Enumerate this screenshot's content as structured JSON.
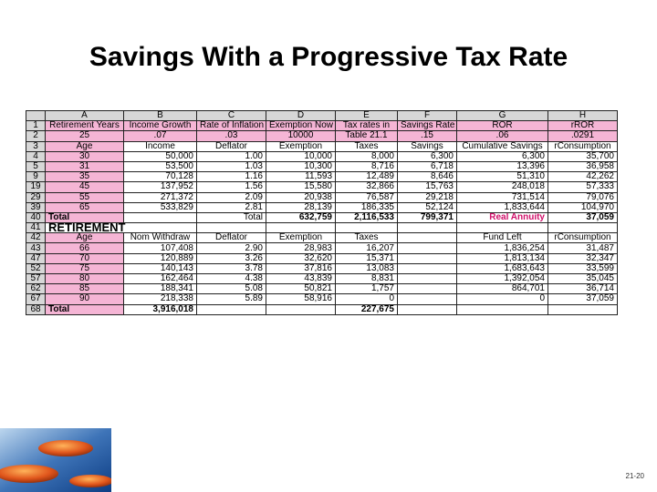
{
  "title": "Savings With a Progressive Tax Rate",
  "page_number": "21-20",
  "column_letters": [
    "A",
    "B",
    "C",
    "D",
    "E",
    "F",
    "G",
    "H"
  ],
  "row_numbers": [
    "1",
    "2",
    "3",
    "4",
    "5",
    "9",
    "19",
    "29",
    "39",
    "40",
    "41",
    "42",
    "43",
    "47",
    "52",
    "57",
    "62",
    "67",
    "68"
  ],
  "r1": [
    "Retirement Years",
    "Income Growth",
    "Rate of Inflation",
    "Exemption Now",
    "Tax rates in",
    "Savings Rate",
    "ROR",
    "rROR"
  ],
  "r2": [
    "25",
    ".07",
    ".03",
    "10000",
    "Table 21.1",
    ".15",
    ".06",
    ".0291"
  ],
  "r3": [
    "Age",
    "Income",
    "Deflator",
    "Exemption",
    "Taxes",
    "Savings",
    "Cumulative Savings",
    "rConsumption"
  ],
  "work": [
    [
      "30",
      "50,000",
      "1.00",
      "10,000",
      "8,000",
      "6,300",
      "6,300",
      "35,700"
    ],
    [
      "31",
      "53,500",
      "1.03",
      "10,300",
      "8,716",
      "6,718",
      "13,396",
      "36,958"
    ],
    [
      "35",
      "70,128",
      "1.16",
      "11,593",
      "12,489",
      "8,646",
      "51,310",
      "42,262"
    ],
    [
      "45",
      "137,952",
      "1.56",
      "15,580",
      "32,866",
      "15,763",
      "248,018",
      "57,333"
    ],
    [
      "55",
      "271,372",
      "2.09",
      "20,938",
      "76,587",
      "29,218",
      "731,514",
      "79,076"
    ],
    [
      "65",
      "533,829",
      "2.81",
      "28,139",
      "186,335",
      "52,124",
      "1,833,644",
      "104,970"
    ]
  ],
  "r40": {
    "a": "Total",
    "c": "Total",
    "d": "632,759",
    "e": "2,116,533",
    "f": "799,371",
    "g": "Real Annuity",
    "h": "37,059"
  },
  "r41": "RETIREMENT",
  "r42": {
    "a": "Age",
    "b": "Nom Withdraw",
    "c": "Deflator",
    "d": "Exemption",
    "e": "Taxes",
    "g": "Fund Left",
    "h": "rConsumption"
  },
  "ret": [
    [
      "66",
      "107,408",
      "2.90",
      "28,983",
      "16,207",
      "1,836,254",
      "31,487"
    ],
    [
      "70",
      "120,889",
      "3.26",
      "32,620",
      "15,371",
      "1,813,134",
      "32,347"
    ],
    [
      "75",
      "140,143",
      "3.78",
      "37,816",
      "13,083",
      "1,683,643",
      "33,599"
    ],
    [
      "80",
      "162,464",
      "4.38",
      "43,839",
      "8,831",
      "1,392,054",
      "35,045"
    ],
    [
      "85",
      "188,341",
      "5.08",
      "50,821",
      "1,757",
      "864,701",
      "36,714"
    ],
    [
      "90",
      "218,338",
      "5.89",
      "58,916",
      "0",
      "0",
      "37,059"
    ]
  ],
  "r68": {
    "a": "Total",
    "b": "3,916,018",
    "e": "227,675"
  }
}
